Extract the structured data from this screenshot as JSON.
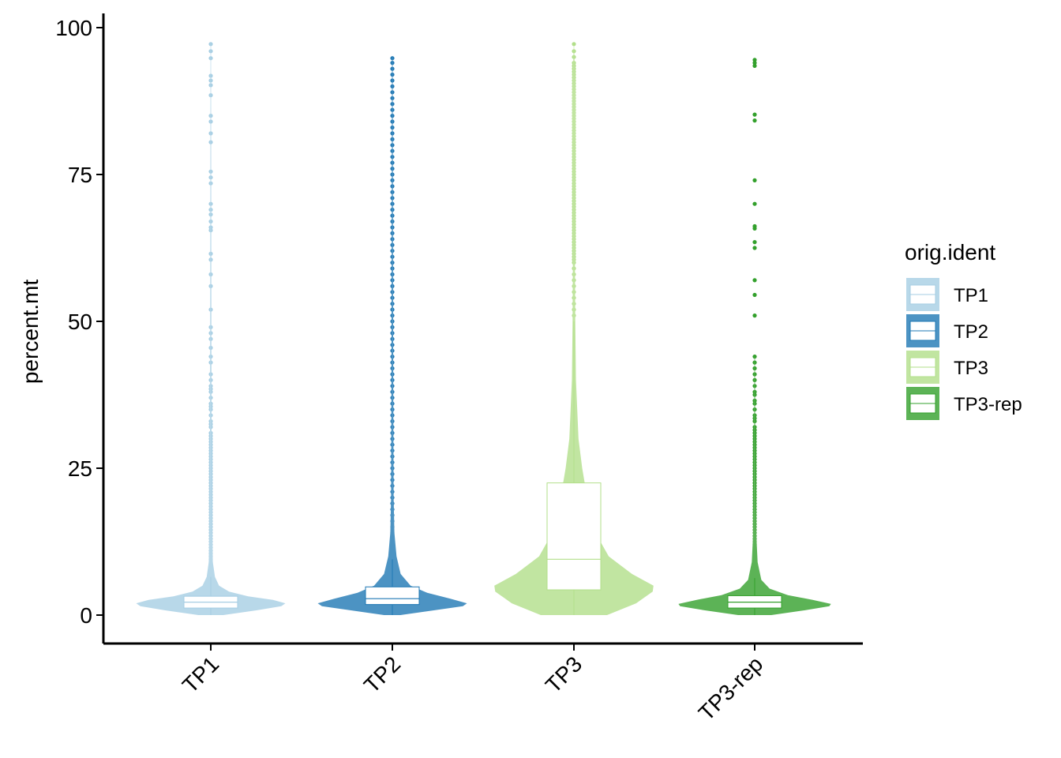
{
  "chart_data": {
    "type": "violin",
    "xlabel": "",
    "ylabel": "percent.mt",
    "ylim": [
      -5,
      102
    ],
    "yticks": [
      0,
      25,
      50,
      75,
      100
    ],
    "categories": [
      "TP1",
      "TP2",
      "TP3",
      "TP3-rep"
    ],
    "legend": {
      "title": "orig.ident",
      "position": "right",
      "entries": [
        "TP1",
        "TP2",
        "TP3",
        "TP3-rep"
      ]
    },
    "grid": false,
    "series": [
      {
        "name": "TP1",
        "color": "#a6cee3",
        "box": {
          "q1": 1.2,
          "median": 2.2,
          "q3": 3.2,
          "whisker_low": 0,
          "whisker_high": 6.5
        },
        "density_shape": [
          [
            0,
            0.15
          ],
          [
            0.8,
            0.55
          ],
          [
            1.5,
            0.85
          ],
          [
            2,
            0.9
          ],
          [
            2.6,
            0.75
          ],
          [
            3.2,
            0.45
          ],
          [
            4,
            0.22
          ],
          [
            5,
            0.1
          ],
          [
            6.5,
            0.05
          ],
          [
            9,
            0.025
          ],
          [
            14,
            0.015
          ],
          [
            25,
            0.01
          ],
          [
            45,
            0.008
          ],
          [
            75,
            0.005
          ],
          [
            97.5,
            0.003
          ]
        ],
        "outliers": [
          97.2,
          96.0,
          94.8,
          91.8,
          91.0,
          90.2,
          88.5,
          85.0,
          84.0,
          82.0,
          80.5,
          75.5,
          74.5,
          73.5,
          70.0,
          69.0,
          68.2,
          67.0,
          66.0,
          65.5,
          61.5,
          60.5,
          58.0,
          56.0,
          52.0,
          49.0,
          48.0,
          47.0,
          45.5,
          44.0,
          43.0,
          41.0,
          40.0,
          39.0,
          38.5,
          38.0,
          37.0,
          36.0,
          35.5,
          35.0,
          34.0,
          33.0,
          32.5,
          32.0,
          31.0,
          30.5,
          30.0,
          29.5,
          29.0,
          28.5,
          28.0,
          27.5,
          27.0,
          26.5,
          26.0,
          25.5,
          25.0,
          24.5,
          24.0,
          23.5,
          23.0,
          22.5,
          22.0,
          21.5,
          21.0,
          20.5,
          20.0,
          19.5,
          19.0,
          18.5,
          18.0,
          17.5,
          17.0,
          16.5,
          16.0,
          15.5,
          15.0,
          14.5,
          14.0,
          13.5,
          13.0,
          12.5,
          12.0,
          11.5,
          11.0,
          10.5,
          10.0,
          9.5,
          9.0,
          8.5,
          8.0,
          7.5,
          7.0
        ]
      },
      {
        "name": "TP2",
        "color": "#1f78b4",
        "box": {
          "q1": 1.8,
          "median": 2.8,
          "q3": 4.8,
          "whisker_low": 0,
          "whisker_high": 9.5
        },
        "density_shape": [
          [
            0,
            0.1
          ],
          [
            0.8,
            0.5
          ],
          [
            1.5,
            0.85
          ],
          [
            2,
            0.9
          ],
          [
            2.8,
            0.7
          ],
          [
            3.8,
            0.42
          ],
          [
            5,
            0.22
          ],
          [
            7,
            0.1
          ],
          [
            10,
            0.05
          ],
          [
            14,
            0.025
          ],
          [
            20,
            0.015
          ],
          [
            40,
            0.01
          ],
          [
            70,
            0.007
          ],
          [
            95,
            0.004
          ]
        ],
        "outliers": [
          94.8,
          94.0,
          93.0,
          92.0,
          91.0,
          90.0,
          89.0,
          88.0,
          87.0,
          86.0,
          85.0,
          84.0,
          83.0,
          82.0,
          81.0,
          80.0,
          79.0,
          78.0,
          77.0,
          76.0,
          75.0,
          74.0,
          73.0,
          72.0,
          71.0,
          70.0,
          69.0,
          68.0,
          67.0,
          66.0,
          65.0,
          64.0,
          63.0,
          62.0,
          61.0,
          60.0,
          59.0,
          58.0,
          57.0,
          56.0,
          55.0,
          54.0,
          53.0,
          52.0,
          51.0,
          50.0,
          49.0,
          48.0,
          47.0,
          46.0,
          45.0,
          44.0,
          43.0,
          42.0,
          41.0,
          40.0,
          39.0,
          38.0,
          37.0,
          36.0,
          35.0,
          34.0,
          33.0,
          32.0,
          31.0,
          30.0,
          29.0,
          28.0,
          27.0,
          26.0,
          25.0,
          24.0,
          23.0,
          22.0,
          21.0,
          20.0,
          19.0,
          18.0,
          17.0,
          16.0,
          15.0,
          14.0,
          13.0,
          12.0,
          11.0,
          10.0
        ]
      },
      {
        "name": "TP3",
        "color": "#b2df8a",
        "box": {
          "q1": 4.3,
          "median": 9.5,
          "q3": 22.5,
          "whisker_low": 0,
          "whisker_high": 50
        },
        "density_shape": [
          [
            0,
            0.4
          ],
          [
            2,
            0.75
          ],
          [
            4,
            0.95
          ],
          [
            5,
            0.96
          ],
          [
            7,
            0.7
          ],
          [
            10,
            0.42
          ],
          [
            14,
            0.26
          ],
          [
            20,
            0.16
          ],
          [
            25,
            0.1
          ],
          [
            30,
            0.055
          ],
          [
            40,
            0.025
          ],
          [
            50,
            0.016
          ],
          [
            60,
            0.012
          ],
          [
            70,
            0.012
          ],
          [
            80,
            0.015
          ],
          [
            85,
            0.02
          ],
          [
            88,
            0.02
          ],
          [
            92,
            0.012
          ],
          [
            95,
            0.006
          ],
          [
            97,
            0.002
          ]
        ],
        "outliers": [
          97.2,
          96.0,
          95.0,
          94.0,
          93.5,
          93.0,
          92.5,
          92.0,
          91.5,
          91.0,
          90.5,
          90.0,
          89.5,
          89.0,
          88.5,
          88.0,
          87.5,
          87.0,
          86.5,
          86.0,
          85.5,
          85.0,
          84.5,
          84.0,
          83.5,
          83.0,
          82.5,
          82.0,
          81.5,
          81.0,
          80.5,
          80.0,
          79.5,
          79.0,
          78.5,
          78.0,
          77.5,
          77.0,
          76.5,
          76.0,
          75.5,
          75.0,
          74.5,
          74.0,
          73.5,
          73.0,
          72.5,
          72.0,
          71.5,
          71.0,
          70.5,
          70.0,
          69.5,
          69.0,
          68.5,
          68.0,
          67.5,
          67.0,
          66.5,
          66.0,
          65.5,
          65.0,
          64.5,
          64.0,
          63.5,
          63.0,
          62.5,
          62.0,
          61.5,
          61.0,
          60.5,
          60.0,
          59.0,
          58.0,
          57.0,
          56.0,
          55.0,
          54.0,
          53.0,
          52.0,
          51.0
        ]
      },
      {
        "name": "TP3-rep",
        "color": "#33a02c",
        "box": {
          "q1": 1.2,
          "median": 2.2,
          "q3": 3.3,
          "whisker_low": 0,
          "whisker_high": 6.3
        },
        "density_shape": [
          [
            0,
            0.2
          ],
          [
            0.8,
            0.6
          ],
          [
            1.5,
            0.9
          ],
          [
            1.9,
            0.92
          ],
          [
            2.6,
            0.7
          ],
          [
            3.4,
            0.4
          ],
          [
            4.5,
            0.18
          ],
          [
            6,
            0.08
          ],
          [
            9,
            0.035
          ],
          [
            14,
            0.018
          ],
          [
            22,
            0.01
          ],
          [
            30,
            0.006
          ],
          [
            40,
            0.004
          ],
          [
            44,
            0.003
          ]
        ],
        "outliers": [
          94.5,
          94.0,
          93.5,
          85.2,
          84.2,
          74.0,
          70.0,
          66.2,
          65.8,
          63.5,
          62.5,
          57.0,
          54.5,
          51.0,
          44.0,
          43.0,
          42.0,
          41.0,
          40.0,
          39.0,
          38.0,
          37.5,
          36.5,
          36.0,
          35.0,
          34.0,
          33.5,
          33.0,
          32.0,
          31.5,
          31.0,
          30.5,
          30.0,
          29.5,
          29.0,
          28.5,
          28.0,
          27.5,
          27.0,
          26.5,
          26.0,
          25.5,
          25.0,
          24.5,
          24.0,
          23.5,
          23.0,
          22.5,
          22.0,
          21.5,
          21.0,
          20.5,
          20.0,
          19.5,
          19.0,
          18.5,
          18.0,
          17.5,
          17.0,
          16.5,
          16.0,
          15.5,
          15.0,
          14.5,
          14.0,
          13.5,
          13.0,
          12.5,
          12.0,
          11.5,
          11.0,
          10.5,
          10.0,
          9.5,
          9.0,
          8.5,
          8.0,
          7.5,
          7.0
        ]
      }
    ]
  }
}
